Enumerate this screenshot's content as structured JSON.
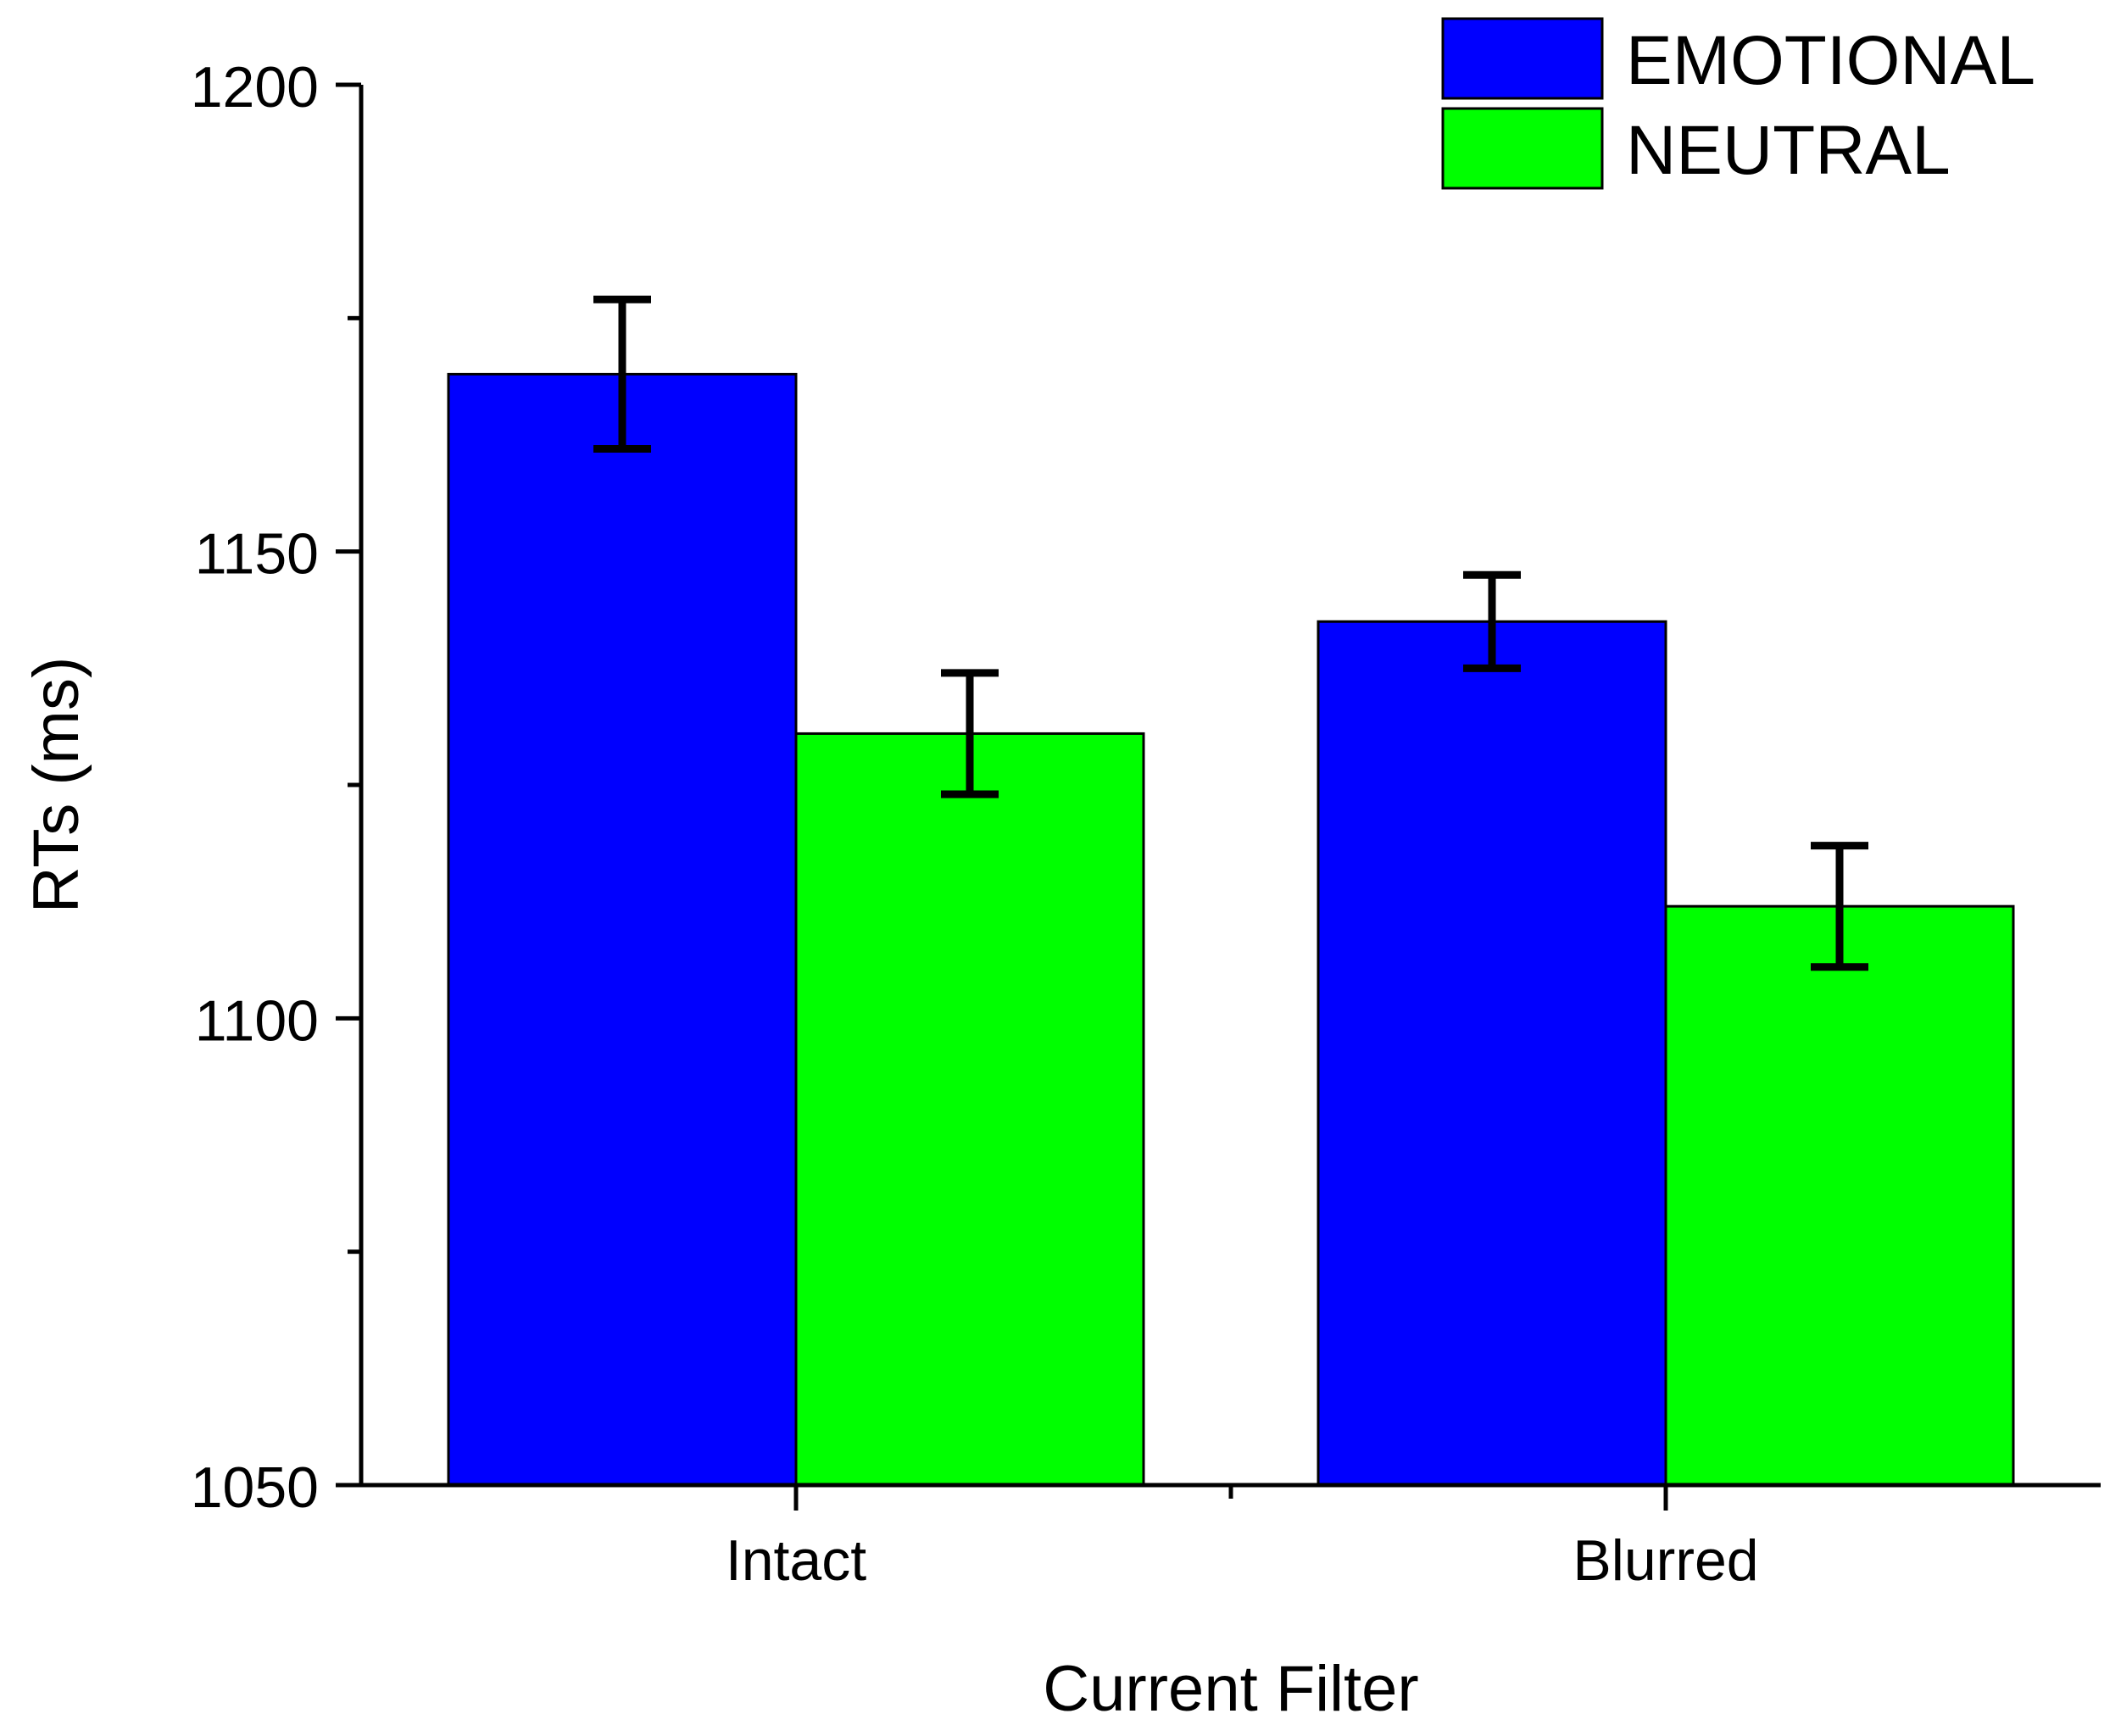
{
  "chart_data": {
    "type": "bar",
    "title": "",
    "xlabel": "Current Filter",
    "ylabel": "RTs (ms)",
    "categories": [
      "Intact",
      "Blurred"
    ],
    "series": [
      {
        "name": "EMOTIONAL",
        "color": "#0000ff",
        "values": [
          1169,
          1142.5
        ],
        "errors": [
          8,
          5
        ]
      },
      {
        "name": "NEUTRAL",
        "color": "#00ff00",
        "values": [
          1130.5,
          1112
        ],
        "errors": [
          6.5,
          6.5
        ]
      }
    ],
    "ylim": [
      1050,
      1200
    ],
    "yticks": [
      1050,
      1100,
      1150,
      1200
    ],
    "yticks_minor": [
      1075,
      1125,
      1175
    ],
    "legend": {
      "position": "top-right",
      "entries": [
        "EMOTIONAL",
        "NEUTRAL"
      ]
    },
    "grid": false
  }
}
